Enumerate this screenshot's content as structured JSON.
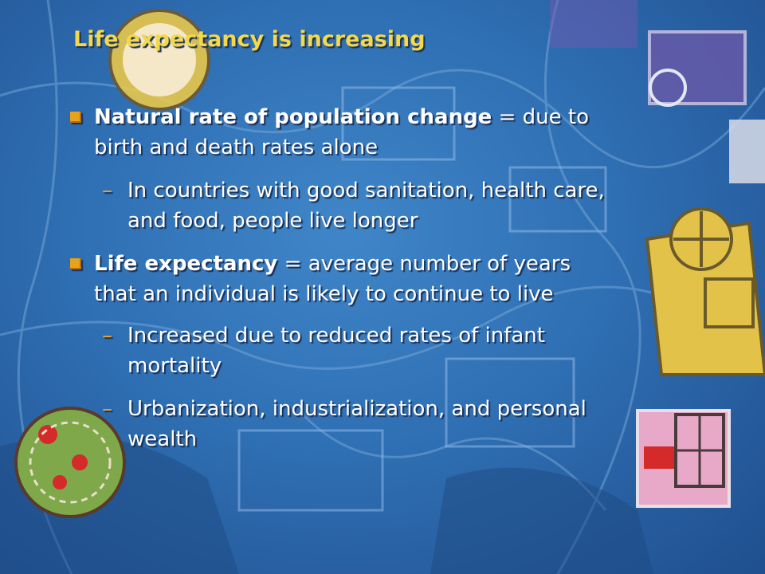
{
  "slide": {
    "title": "Life expectancy is increasing",
    "items": [
      {
        "level": 1,
        "term": "Natural rate of population change",
        "line1_rest": " = due to",
        "line2": "birth and death rates alone"
      },
      {
        "level": 2,
        "line1": "In countries with good sanitation, health care,",
        "line2": "and food, people live longer"
      },
      {
        "level": 1,
        "term": "Life expectancy",
        "line1_rest": " = average number of years",
        "line2": "that an individual is likely to continue to live"
      },
      {
        "level": 2,
        "line1": "Increased due to reduced rates of infant",
        "line2": "mortality"
      },
      {
        "level": 2,
        "line1": "Urbanization, industrialization, and personal",
        "line2": "wealth"
      }
    ],
    "dash_symbol": "–"
  },
  "colors": {
    "title": "#f2d84a",
    "body_text": "#ffffff",
    "bullet": "#e8a21c",
    "dash": "#f2a52a",
    "background": "#2f6fb3"
  }
}
